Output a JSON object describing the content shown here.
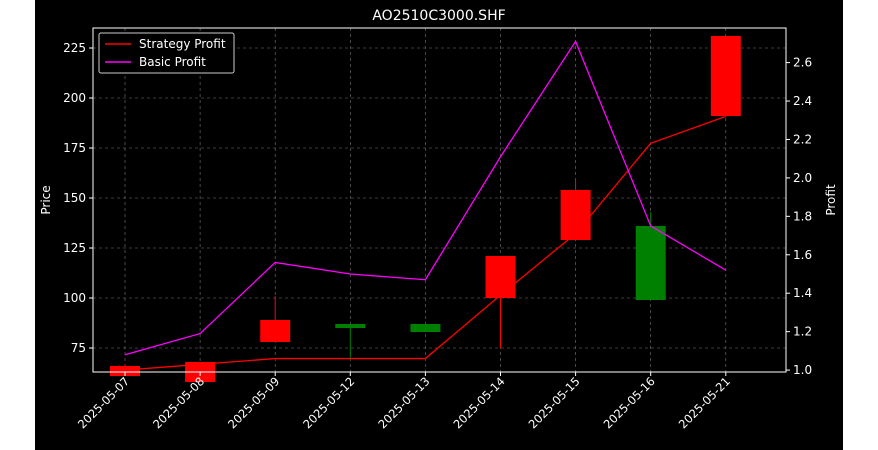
{
  "chart_data": {
    "type": "candlestick",
    "title": "AO2510C3000.SHF",
    "xlabel": "",
    "ylabel": "Price",
    "ylabel_right": "Profit",
    "categories": [
      "2025-05-07",
      "2025-05-08",
      "2025-05-09",
      "2025-05-12",
      "2025-05-13",
      "2025-05-14",
      "2025-05-15",
      "2025-05-16",
      "2025-05-21"
    ],
    "y_ticks": [
      75,
      100,
      125,
      150,
      175,
      200,
      225
    ],
    "y_ticks_right": [
      1.0,
      1.2,
      1.4,
      1.6,
      1.8,
      2.0,
      2.2,
      2.4,
      2.6
    ],
    "y_tick_labels_right": [
      "1.0",
      "1.2",
      "1.4",
      "1.6",
      "1.8",
      "2.0",
      "2.2",
      "2.4",
      "2.6"
    ],
    "ylim": [
      63,
      235
    ],
    "ylim_right": [
      0.99,
      2.78
    ],
    "grid": true,
    "legend_position": "top-left",
    "candles": [
      {
        "date": "2025-05-07",
        "open": 61,
        "close": 66,
        "high": 67,
        "low": 61
      },
      {
        "date": "2025-05-08",
        "open": 58,
        "close": 68,
        "high": 68,
        "low": 58
      },
      {
        "date": "2025-05-09",
        "open": 78,
        "close": 89,
        "high": 101,
        "low": 78
      },
      {
        "date": "2025-05-12",
        "open": 87,
        "close": 85,
        "high": 87,
        "low": 69
      },
      {
        "date": "2025-05-13",
        "open": 87,
        "close": 83,
        "high": 87,
        "low": 83
      },
      {
        "date": "2025-05-14",
        "open": 100,
        "close": 121,
        "high": 121,
        "low": 75
      },
      {
        "date": "2025-05-15",
        "open": 129,
        "close": 154,
        "high": 159,
        "low": 129
      },
      {
        "date": "2025-05-16",
        "open": 136,
        "close": 99,
        "high": 143,
        "low": 99
      },
      {
        "date": "2025-05-21",
        "open": 191,
        "close": 231,
        "high": 231,
        "low": 191
      }
    ],
    "series": [
      {
        "name": "Strategy Profit",
        "color": "#ff0000",
        "axis": "right",
        "values": [
          1.0,
          1.03,
          1.06,
          1.06,
          1.06,
          1.39,
          1.71,
          2.18,
          2.32
        ]
      },
      {
        "name": "Basic Profit",
        "color": "#ff00ff",
        "axis": "right",
        "values": [
          1.08,
          1.19,
          1.56,
          1.5,
          1.47,
          2.11,
          2.71,
          1.75,
          1.52
        ]
      }
    ],
    "up_color": "#ff0000",
    "down_color": "#008000"
  }
}
